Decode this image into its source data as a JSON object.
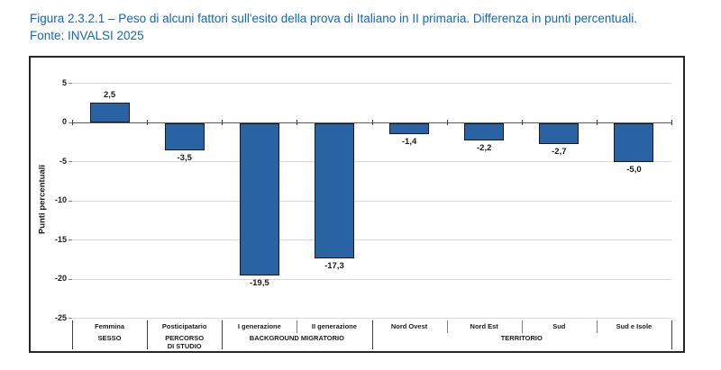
{
  "title": {
    "line1": "Figura 2.3.2.1 – Peso di alcuni fattori sull'esito della prova di Italiano in II primaria. Differenza in punti percentuali.",
    "line2": "Fonte: INVALSI 2025"
  },
  "chart_data": {
    "type": "bar",
    "title": "Peso di alcuni fattori sull'esito della prova di Italiano in II primaria. Differenza in punti percentuali.",
    "source": "Fonte: INVALSI 2025",
    "ylabel": "Punti percentuali",
    "xlabel": "",
    "ylim": [
      -25,
      5
    ],
    "yticks": [
      5,
      0,
      -5,
      -10,
      -15,
      -20,
      -25
    ],
    "grid": true,
    "legend": "none",
    "bar_color": "#2A63A4",
    "bar_border_color": "#1a1a1a",
    "categories": [
      "Femmina",
      "Posticipatario",
      "I generazione",
      "II generazione",
      "Nord Ovest",
      "Nord Est",
      "Sud",
      "Sud e Isole"
    ],
    "values": [
      2.5,
      -3.5,
      -19.5,
      -17.3,
      -1.4,
      -2.2,
      -2.7,
      -5.0
    ],
    "value_labels": [
      "2,5",
      "-3,5",
      "-19,5",
      "-17,3",
      "-1,4",
      "-2,2",
      "-2,7",
      "-5,0"
    ],
    "groups": [
      {
        "label": "SESSO",
        "span": 1
      },
      {
        "label": "PERCORSO\nDI STUDIO",
        "span": 1
      },
      {
        "label": "BACKGROUND MIGRATORIO",
        "span": 2
      },
      {
        "label": "TERRITORIO",
        "span": 4
      }
    ]
  }
}
